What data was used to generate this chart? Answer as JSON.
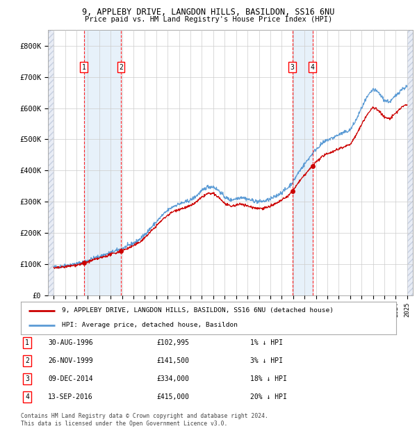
{
  "title1": "9, APPLEBY DRIVE, LANGDON HILLS, BASILDON, SS16 6NU",
  "title2": "Price paid vs. HM Land Registry's House Price Index (HPI)",
  "ylim": [
    0,
    850000
  ],
  "yticks": [
    0,
    100000,
    200000,
    300000,
    400000,
    500000,
    600000,
    700000,
    800000
  ],
  "ytick_labels": [
    "£0",
    "£100K",
    "£200K",
    "£300K",
    "£400K",
    "£500K",
    "£600K",
    "£700K",
    "£800K"
  ],
  "hpi_line_color": "#5b9bd5",
  "price_color": "#cc0000",
  "sale_marker_color": "#cc0000",
  "background_color": "#ffffff",
  "grid_color": "#cccccc",
  "sale_transactions": [
    {
      "date_num": 1996.66,
      "price": 102995,
      "label": "1"
    },
    {
      "date_num": 1999.9,
      "price": 141500,
      "label": "2"
    },
    {
      "date_num": 2014.94,
      "price": 334000,
      "label": "3"
    },
    {
      "date_num": 2016.71,
      "price": 415000,
      "label": "4"
    }
  ],
  "legend_property_label": "9, APPLEBY DRIVE, LANGDON HILLS, BASILDON, SS16 6NU (detached house)",
  "legend_hpi_label": "HPI: Average price, detached house, Basildon",
  "table_rows": [
    {
      "num": "1",
      "date": "30-AUG-1996",
      "price": "£102,995",
      "hpi": "1% ↓ HPI"
    },
    {
      "num": "2",
      "date": "26-NOV-1999",
      "price": "£141,500",
      "hpi": "3% ↓ HPI"
    },
    {
      "num": "3",
      "date": "09-DEC-2014",
      "price": "£334,000",
      "hpi": "18% ↓ HPI"
    },
    {
      "num": "4",
      "date": "13-SEP-2016",
      "price": "£415,000",
      "hpi": "20% ↓ HPI"
    }
  ],
  "footer1": "Contains HM Land Registry data © Crown copyright and database right 2024.",
  "footer2": "This data is licensed under the Open Government Licence v3.0.",
  "xlim_start": 1993.5,
  "xlim_end": 2025.5,
  "hpi_data_x": [
    1994,
    1994.5,
    1995,
    1995.5,
    1996,
    1996.5,
    1997,
    1997.5,
    1998,
    1998.5,
    1999,
    1999.5,
    2000,
    2000.5,
    2001,
    2001.5,
    2002,
    2002.5,
    2003,
    2003.5,
    2004,
    2004.5,
    2005,
    2005.5,
    2006,
    2006.5,
    2007,
    2007.5,
    2008,
    2008.5,
    2009,
    2009.5,
    2010,
    2010.5,
    2011,
    2011.5,
    2012,
    2012.5,
    2013,
    2013.5,
    2014,
    2014.5,
    2015,
    2015.5,
    2016,
    2016.5,
    2017,
    2017.5,
    2018,
    2018.5,
    2019,
    2019.5,
    2020,
    2020.5,
    2021,
    2021.5,
    2022,
    2022.5,
    2023,
    2023.5,
    2024,
    2024.5,
    2025
  ],
  "hpi_data_y": [
    90000,
    92000,
    95000,
    98000,
    101000,
    105000,
    112000,
    118000,
    124000,
    130000,
    137000,
    143000,
    150000,
    158000,
    167000,
    178000,
    195000,
    215000,
    235000,
    255000,
    272000,
    285000,
    293000,
    298000,
    305000,
    318000,
    335000,
    348000,
    348000,
    335000,
    315000,
    305000,
    310000,
    315000,
    308000,
    303000,
    300000,
    302000,
    308000,
    318000,
    330000,
    343000,
    365000,
    395000,
    420000,
    445000,
    468000,
    485000,
    498000,
    505000,
    515000,
    522000,
    530000,
    560000,
    600000,
    635000,
    660000,
    650000,
    625000,
    620000,
    640000,
    660000,
    670000
  ]
}
